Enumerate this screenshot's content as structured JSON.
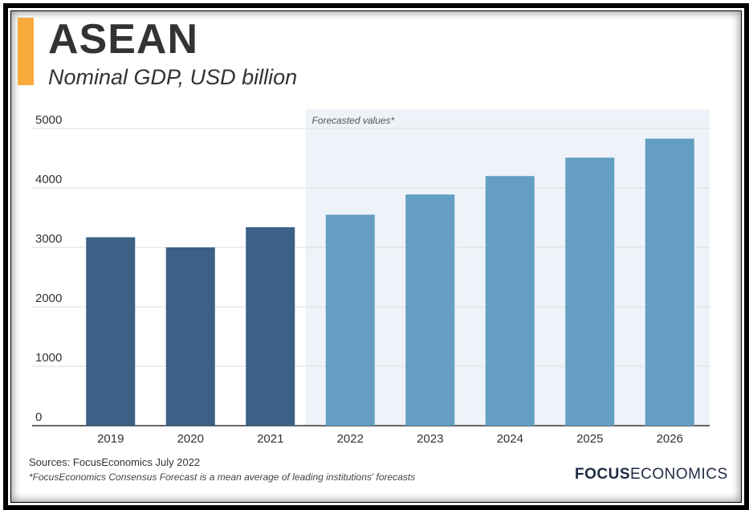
{
  "header": {
    "title": "ASEAN",
    "subtitle": "Nominal GDP, USD billion"
  },
  "chart_data": {
    "type": "bar",
    "categories": [
      "2019",
      "2020",
      "2021",
      "2022",
      "2023",
      "2024",
      "2025",
      "2026"
    ],
    "values": [
      3170,
      3000,
      3340,
      3550,
      3890,
      4200,
      4510,
      4830
    ],
    "forecast_from_index": 3,
    "forecast_label": "Forecasted values*",
    "ylim": [
      0,
      5000
    ],
    "yticks": [
      0,
      1000,
      2000,
      3000,
      4000,
      5000
    ],
    "grid": true,
    "colors": {
      "actual": "#3b6186",
      "forecast": "#649ec3",
      "forecast_band": "#edf3f8",
      "grid": "#dddddd",
      "axis": "#333333"
    }
  },
  "footer": {
    "sources": "Sources: FocusEconomics July 2022",
    "footnote": "*FocusEconomics Consensus Forecast is a mean average of leading institutions' forecasts",
    "logo_bold": "FOCUS",
    "logo_regular": "ECONOMICS"
  }
}
